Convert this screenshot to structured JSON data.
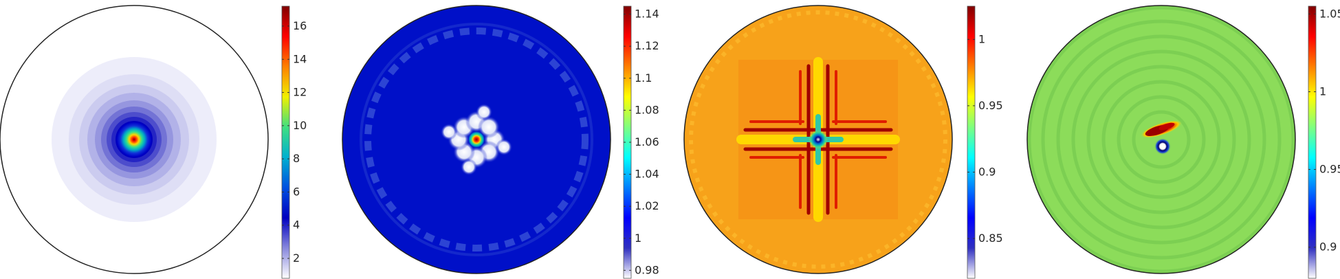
{
  "chart_data": [
    {
      "type": "heatmap",
      "title": "",
      "colorbar": {
        "ticks": [
          2,
          4,
          6,
          8,
          10,
          12,
          14,
          16
        ],
        "range": [
          0.8,
          17.2
        ],
        "position": "right"
      },
      "field": {
        "shape": "disk",
        "pattern": "central peak with stepped concentric rings",
        "center_value": 17.2,
        "background_value": 1.0
      },
      "colors": {
        "low": "#ffffff",
        "mid": "#0000c0",
        "high": "#800000"
      }
    },
    {
      "type": "heatmap",
      "title": "",
      "colorbar": {
        "ticks": [
          0.98,
          1,
          1.02,
          1.04,
          1.06,
          1.08,
          1.1,
          1.12,
          1.14
        ],
        "range": [
          0.975,
          1.145
        ],
        "position": "right"
      },
      "field": {
        "shape": "disk",
        "pattern": "central peak with 8-fold white petals and faint outer ring",
        "center_value": 1.145,
        "background_value": 1.0
      }
    },
    {
      "type": "heatmap",
      "title": "",
      "colorbar": {
        "ticks": [
          0.85,
          0.9,
          0.95,
          1
        ],
        "range": [
          0.82,
          1.025
        ],
        "position": "right"
      },
      "field": {
        "shape": "disk",
        "pattern": "cross of red ridges around central minimum",
        "center_value": 0.82,
        "background_value": 1.0
      }
    },
    {
      "type": "heatmap",
      "title": "",
      "colorbar": {
        "ticks": [
          0.9,
          0.95,
          1,
          1.05
        ],
        "range": [
          0.88,
          1.055
        ],
        "position": "right"
      },
      "field": {
        "shape": "disk",
        "pattern": "spiral waves with off-center dipole",
        "center_value": 0.88,
        "background_value": 1.0
      }
    }
  ]
}
